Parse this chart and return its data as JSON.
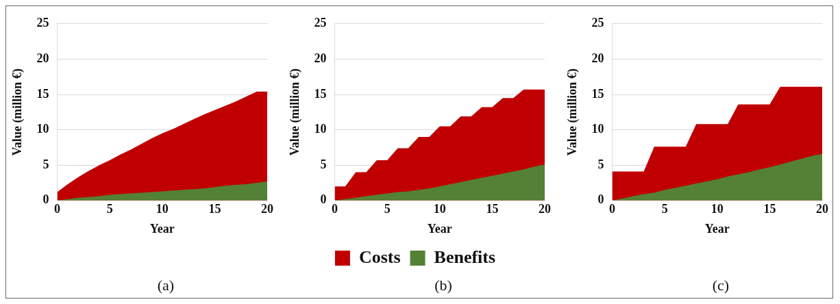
{
  "chart_data": [
    {
      "type": "area",
      "xlabel": "Year",
      "ylabel": "Value (million €)",
      "xlim": [
        0,
        20
      ],
      "xticks": [
        0,
        5,
        10,
        15,
        20
      ],
      "ylim": [
        0,
        25
      ],
      "yticks": [
        0,
        5,
        10,
        15,
        20,
        25
      ],
      "grid": "y",
      "legend": false,
      "annotations": [
        "(a)"
      ],
      "x": [
        0,
        1,
        2,
        3,
        4,
        5,
        6,
        7,
        8,
        9,
        10,
        11,
        12,
        13,
        14,
        15,
        16,
        17,
        18,
        19,
        20
      ],
      "series": [
        {
          "color": "#c00000",
          "values": [
            1.2,
            2.3,
            3.3,
            4.2,
            5.0,
            5.7,
            6.5,
            7.2,
            8.0,
            8.8,
            9.5,
            10.1,
            10.8,
            11.5,
            12.2,
            12.8,
            13.4,
            14.0,
            14.7,
            15.4,
            15.4
          ]
        },
        {
          "color": "#538135",
          "values": [
            0,
            0.2,
            0.4,
            0.5,
            0.6,
            0.8,
            0.9,
            1.0,
            1.1,
            1.2,
            1.3,
            1.4,
            1.5,
            1.6,
            1.7,
            1.9,
            2.1,
            2.2,
            2.3,
            2.5,
            2.7
          ]
        }
      ]
    },
    {
      "type": "area",
      "xlabel": "Year",
      "ylabel": "Value (million €)",
      "xlim": [
        0,
        20
      ],
      "xticks": [
        0,
        5,
        10,
        15,
        20
      ],
      "ylim": [
        0,
        25
      ],
      "yticks": [
        0,
        5,
        10,
        15,
        20,
        25
      ],
      "grid": "y",
      "legend": "bottom",
      "annotations": [
        "(b)"
      ],
      "x": [
        0,
        1,
        2,
        3,
        4,
        5,
        6,
        7,
        8,
        9,
        10,
        11,
        12,
        13,
        14,
        15,
        16,
        17,
        18,
        19,
        20
      ],
      "series": [
        {
          "name": "Costs",
          "color": "#c00000",
          "values": [
            2.0,
            2.0,
            4.0,
            4.0,
            5.7,
            5.7,
            7.4,
            7.4,
            9.0,
            9.0,
            10.5,
            10.5,
            11.9,
            11.9,
            13.2,
            13.2,
            14.5,
            14.5,
            15.7,
            15.7,
            15.7
          ]
        },
        {
          "name": "Benefits",
          "color": "#538135",
          "values": [
            0,
            0.2,
            0.4,
            0.6,
            0.8,
            1.0,
            1.2,
            1.3,
            1.5,
            1.7,
            2.0,
            2.3,
            2.6,
            2.9,
            3.2,
            3.5,
            3.8,
            4.1,
            4.4,
            4.8,
            5.1
          ]
        }
      ]
    },
    {
      "type": "area",
      "xlabel": "Year",
      "ylabel": "Value (million €)",
      "xlim": [
        0,
        20
      ],
      "xticks": [
        0,
        5,
        10,
        15,
        20
      ],
      "ylim": [
        0,
        25
      ],
      "yticks": [
        0,
        5,
        10,
        15,
        20,
        25
      ],
      "grid": "y",
      "legend": false,
      "annotations": [
        "(c)"
      ],
      "x": [
        0,
        1,
        2,
        3,
        4,
        5,
        6,
        7,
        8,
        9,
        10,
        11,
        12,
        13,
        14,
        15,
        16,
        17,
        18,
        19,
        20
      ],
      "series": [
        {
          "color": "#c00000",
          "values": [
            4.1,
            4.1,
            4.1,
            4.1,
            7.6,
            7.6,
            7.6,
            7.6,
            10.8,
            10.8,
            10.8,
            10.8,
            13.6,
            13.6,
            13.6,
            13.6,
            16.1,
            16.1,
            16.1,
            16.1,
            16.1
          ]
        },
        {
          "color": "#538135",
          "values": [
            0,
            0.3,
            0.6,
            0.9,
            1.1,
            1.5,
            1.8,
            2.1,
            2.4,
            2.7,
            3.0,
            3.4,
            3.7,
            4.0,
            4.4,
            4.7,
            5.1,
            5.5,
            5.9,
            6.3,
            6.6
          ]
        }
      ]
    }
  ]
}
